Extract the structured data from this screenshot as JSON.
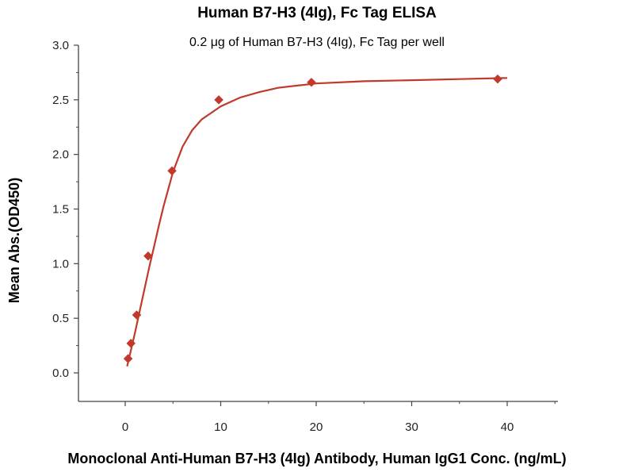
{
  "chart_data": {
    "type": "scatter",
    "title": "Human B7-H3 (4Ig), Fc Tag ELISA",
    "subtitle": "0.2 μg of Human B7-H3 (4Ig), Fc Tag per well",
    "xlabel": "Monoclonal Anti-Human B7-H3 (4Ig) Antibody, Human IgG1 Conc. (ng/mL)",
    "ylabel": "Mean Abs.(OD450)",
    "xlim": [
      -5,
      45
    ],
    "ylim": [
      0,
      3.0
    ],
    "x_ticks": [
      "0",
      "10",
      "20",
      "30",
      "40"
    ],
    "y_ticks": [
      "0.0",
      "0.5",
      "1.0",
      "1.5",
      "2.0",
      "2.5",
      "3.0"
    ],
    "grid": false,
    "series": [
      {
        "color": "#c0392b",
        "marker": "diamond",
        "x": [
          0.3,
          0.6,
          1.2,
          2.4,
          4.9,
          9.8,
          19.5,
          39.0
        ],
        "y": [
          0.13,
          0.27,
          0.53,
          1.07,
          1.85,
          2.5,
          2.66,
          2.69
        ]
      }
    ],
    "fit_curve": {
      "color": "#c0392b",
      "x": [
        0.2,
        0.5,
        1,
        1.5,
        2,
        2.5,
        3,
        3.5,
        4,
        5,
        6,
        7,
        8,
        9,
        10,
        12,
        14,
        16,
        18,
        20,
        25,
        30,
        35,
        40
      ],
      "y": [
        0.06,
        0.17,
        0.36,
        0.56,
        0.76,
        0.96,
        1.15,
        1.34,
        1.52,
        1.84,
        2.07,
        2.22,
        2.32,
        2.38,
        2.44,
        2.52,
        2.57,
        2.61,
        2.63,
        2.65,
        2.67,
        2.68,
        2.69,
        2.7
      ]
    }
  }
}
